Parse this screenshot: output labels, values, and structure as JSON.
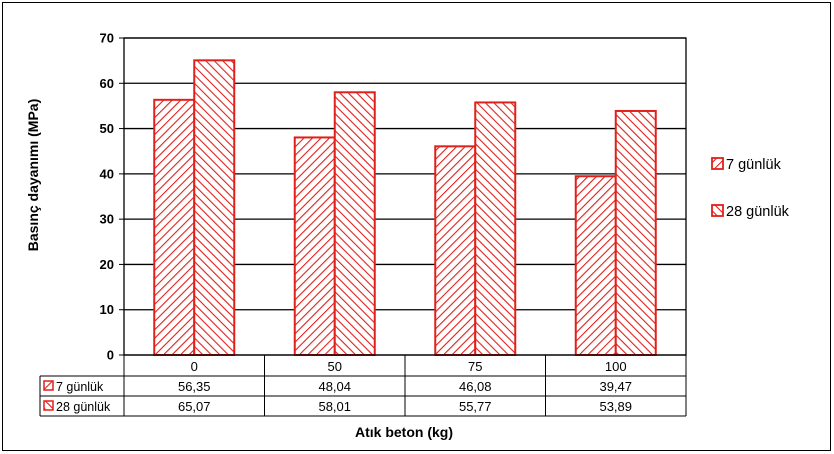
{
  "chart_data": {
    "type": "bar",
    "categories": [
      "0",
      "50",
      "75",
      "100"
    ],
    "series": [
      {
        "name": "7 günlük",
        "values": [
          56.35,
          48.04,
          46.08,
          39.47
        ],
        "labels": [
          "56,35",
          "48,04",
          "46,08",
          "39,47"
        ]
      },
      {
        "name": "28 günlük",
        "values": [
          65.07,
          58.01,
          55.77,
          53.89
        ],
        "labels": [
          "65,07",
          "58,01",
          "55,77",
          "53,89"
        ]
      }
    ],
    "xlabel": "Atık beton (kg)",
    "ylabel": "Basınç dayanımı (MPa)",
    "ylim": [
      0,
      70
    ],
    "yticks": [
      "0",
      "10",
      "20",
      "30",
      "40",
      "50",
      "60",
      "70"
    ],
    "grid": true,
    "legend_position": "right",
    "data_table": true,
    "colors": {
      "bar_stroke": "#e0201b",
      "hatch": "#e0201b",
      "bar_fill": "#ffffff"
    }
  }
}
